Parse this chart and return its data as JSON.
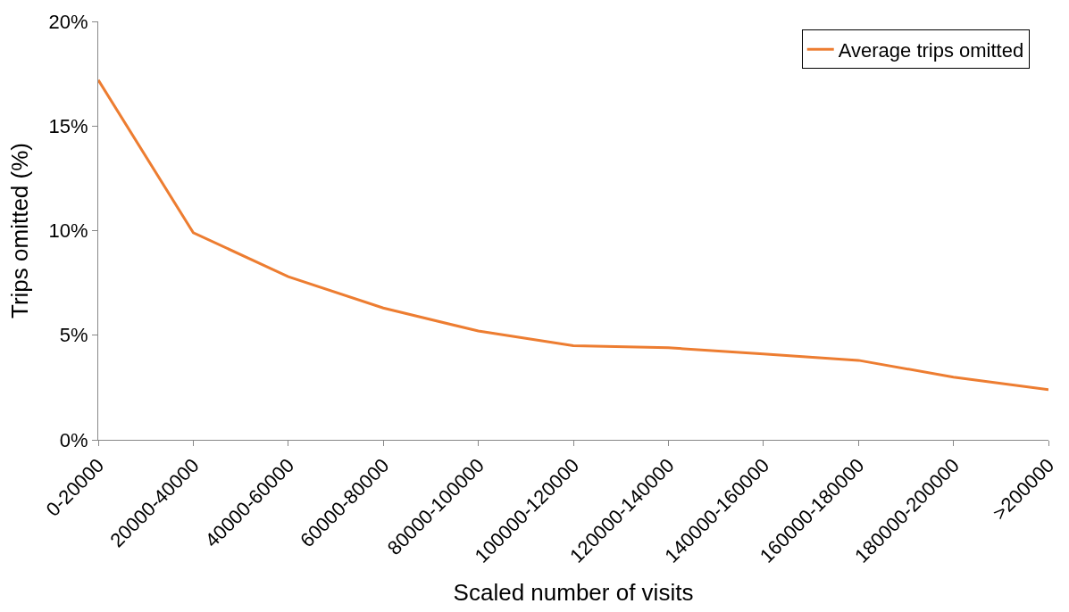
{
  "chart_data": {
    "type": "line",
    "xlabel": "Scaled number of visits",
    "ylabel": "Trips omitted (%)",
    "categories": [
      "0-20000",
      "20000-40000",
      "40000-60000",
      "60000-80000",
      "80000-100000",
      "100000-120000",
      "120000-140000",
      "140000-160000",
      "160000-180000",
      "180000-200000",
      ">200000"
    ],
    "series": [
      {
        "name": "Average trips omitted",
        "color": "#ed7d31",
        "values": [
          17.2,
          9.9,
          7.8,
          6.3,
          5.2,
          4.5,
          4.4,
          4.1,
          3.8,
          3.0,
          2.4
        ]
      }
    ],
    "ylim": [
      0,
      20
    ],
    "yticks": [
      {
        "value": 0,
        "label": "0%"
      },
      {
        "value": 5,
        "label": "5%"
      },
      {
        "value": 10,
        "label": "10%"
      },
      {
        "value": 15,
        "label": "15%"
      },
      {
        "value": 20,
        "label": "20%"
      }
    ],
    "grid": false,
    "legend": "top right",
    "marker": "none",
    "line_style": "solid"
  }
}
